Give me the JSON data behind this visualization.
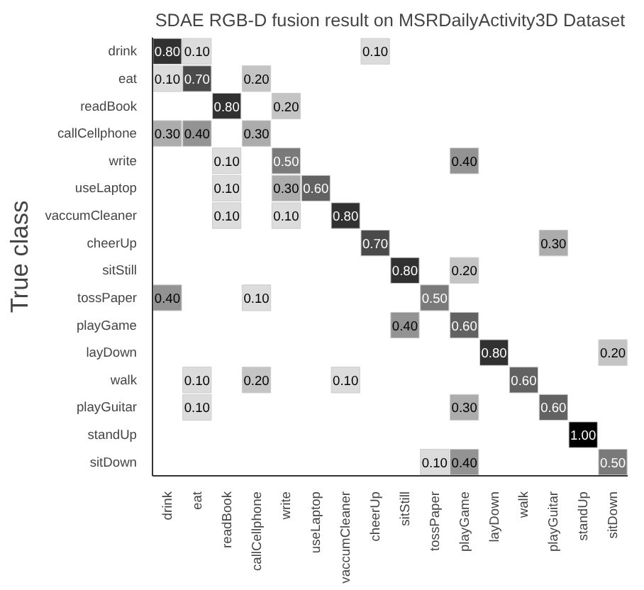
{
  "chart_data": {
    "type": "heatmap",
    "title": "SDAE RGB-D fusion result on MSRDailyActivity3D Dataset",
    "ylabel": "True class",
    "categories": [
      "drink",
      "eat",
      "readBook",
      "callCellphone",
      "write",
      "useLaptop",
      "vaccumCleaner",
      "cheerUp",
      "sitStill",
      "tossPaper",
      "playGame",
      "layDown",
      "walk",
      "playGuitar",
      "standUp",
      "sitDown"
    ],
    "y_categories": [
      "drink",
      "eat",
      "readBook",
      "callCellphone",
      "write",
      "useLaptop",
      "vaccumCleaner",
      "cheerUp",
      "sitStill",
      "tossPaper",
      "playGame",
      "layDown",
      "walk",
      "playGuitar",
      "standUp",
      "sitDown"
    ],
    "cells": [
      [
        0.8,
        0.1,
        null,
        null,
        null,
        null,
        null,
        0.1,
        null,
        null,
        null,
        null,
        null,
        null,
        null,
        null
      ],
      [
        0.1,
        0.7,
        null,
        0.2,
        null,
        null,
        null,
        null,
        null,
        null,
        null,
        null,
        null,
        null,
        null,
        null
      ],
      [
        null,
        null,
        0.8,
        null,
        0.2,
        null,
        null,
        null,
        null,
        null,
        null,
        null,
        null,
        null,
        null,
        null
      ],
      [
        0.3,
        0.4,
        null,
        0.3,
        null,
        null,
        null,
        null,
        null,
        null,
        null,
        null,
        null,
        null,
        null,
        null
      ],
      [
        null,
        null,
        0.1,
        null,
        0.5,
        null,
        null,
        null,
        null,
        null,
        0.4,
        null,
        null,
        null,
        null,
        null
      ],
      [
        null,
        null,
        0.1,
        null,
        0.3,
        0.6,
        null,
        null,
        null,
        null,
        null,
        null,
        null,
        null,
        null,
        null
      ],
      [
        null,
        null,
        0.1,
        null,
        0.1,
        null,
        0.8,
        null,
        null,
        null,
        null,
        null,
        null,
        null,
        null,
        null
      ],
      [
        null,
        null,
        null,
        null,
        null,
        null,
        null,
        0.7,
        null,
        null,
        null,
        null,
        null,
        0.3,
        null,
        null
      ],
      [
        null,
        null,
        null,
        null,
        null,
        null,
        null,
        null,
        0.8,
        null,
        0.2,
        null,
        null,
        null,
        null,
        null
      ],
      [
        0.4,
        null,
        null,
        0.1,
        null,
        null,
        null,
        null,
        null,
        0.5,
        null,
        null,
        null,
        null,
        null,
        null
      ],
      [
        null,
        null,
        null,
        null,
        null,
        null,
        null,
        null,
        0.4,
        null,
        0.6,
        null,
        null,
        null,
        null,
        null
      ],
      [
        null,
        null,
        null,
        null,
        null,
        null,
        null,
        null,
        null,
        null,
        null,
        0.8,
        null,
        null,
        null,
        0.2
      ],
      [
        null,
        0.1,
        null,
        0.2,
        null,
        null,
        0.1,
        null,
        null,
        null,
        null,
        null,
        0.6,
        null,
        null,
        null
      ],
      [
        null,
        0.1,
        null,
        null,
        null,
        null,
        null,
        null,
        null,
        null,
        0.3,
        null,
        null,
        0.6,
        null,
        null
      ],
      [
        null,
        null,
        null,
        null,
        null,
        null,
        null,
        null,
        null,
        null,
        null,
        null,
        null,
        null,
        1.0,
        null
      ],
      [
        null,
        null,
        null,
        null,
        null,
        null,
        null,
        null,
        null,
        0.1,
        0.4,
        null,
        null,
        null,
        null,
        0.5
      ]
    ],
    "cell_labels": [
      [
        "0.80",
        "0.10",
        null,
        null,
        null,
        null,
        null,
        "0.10",
        null,
        null,
        null,
        null,
        null,
        null,
        null,
        null
      ],
      [
        "0.10",
        "0.70",
        null,
        "0.20",
        null,
        null,
        null,
        null,
        null,
        null,
        null,
        null,
        null,
        null,
        null,
        null
      ],
      [
        null,
        null,
        "0.80",
        null,
        "0.20",
        null,
        null,
        null,
        null,
        null,
        null,
        null,
        null,
        null,
        null,
        null
      ],
      [
        "0.30",
        "0.40",
        null,
        "0.30",
        null,
        null,
        null,
        null,
        null,
        null,
        null,
        null,
        null,
        null,
        null,
        null
      ],
      [
        null,
        null,
        "0.10",
        null,
        "0.50",
        null,
        null,
        null,
        null,
        null,
        "0.40",
        null,
        null,
        null,
        null,
        null
      ],
      [
        null,
        null,
        "0.10",
        null,
        "0.30",
        "0.60",
        null,
        null,
        null,
        null,
        null,
        null,
        null,
        null,
        null,
        null
      ],
      [
        null,
        null,
        "0.10",
        null,
        "0.10",
        null,
        "0.80",
        null,
        null,
        null,
        null,
        null,
        null,
        null,
        null,
        null
      ],
      [
        null,
        null,
        null,
        null,
        null,
        null,
        null,
        "0.70",
        null,
        null,
        null,
        null,
        null,
        "0.30",
        null,
        null
      ],
      [
        null,
        null,
        null,
        null,
        null,
        null,
        null,
        null,
        "0.80",
        null,
        "0.20",
        null,
        null,
        null,
        null,
        null
      ],
      [
        "0.40",
        null,
        null,
        "0.10",
        null,
        null,
        null,
        null,
        null,
        "0.50",
        null,
        null,
        null,
        null,
        null,
        null
      ],
      [
        null,
        null,
        null,
        null,
        null,
        null,
        null,
        null,
        "0.40",
        null,
        "0.60",
        null,
        null,
        null,
        null,
        null
      ],
      [
        null,
        null,
        null,
        null,
        null,
        null,
        null,
        null,
        null,
        null,
        null,
        "0.80",
        null,
        null,
        null,
        "0.20"
      ],
      [
        null,
        "0.10",
        null,
        "0.20",
        null,
        null,
        "0.10",
        null,
        null,
        null,
        null,
        null,
        "0.60",
        null,
        null,
        null
      ],
      [
        null,
        "0.10",
        null,
        null,
        null,
        null,
        null,
        null,
        null,
        null,
        "0.30",
        null,
        null,
        "0.60",
        null,
        null
      ],
      [
        null,
        null,
        null,
        null,
        null,
        null,
        null,
        null,
        null,
        null,
        null,
        null,
        null,
        null,
        "1.00",
        null
      ],
      [
        null,
        null,
        null,
        null,
        null,
        null,
        null,
        null,
        null,
        "0.10",
        "0.40",
        null,
        null,
        null,
        null,
        "0.50"
      ]
    ]
  }
}
